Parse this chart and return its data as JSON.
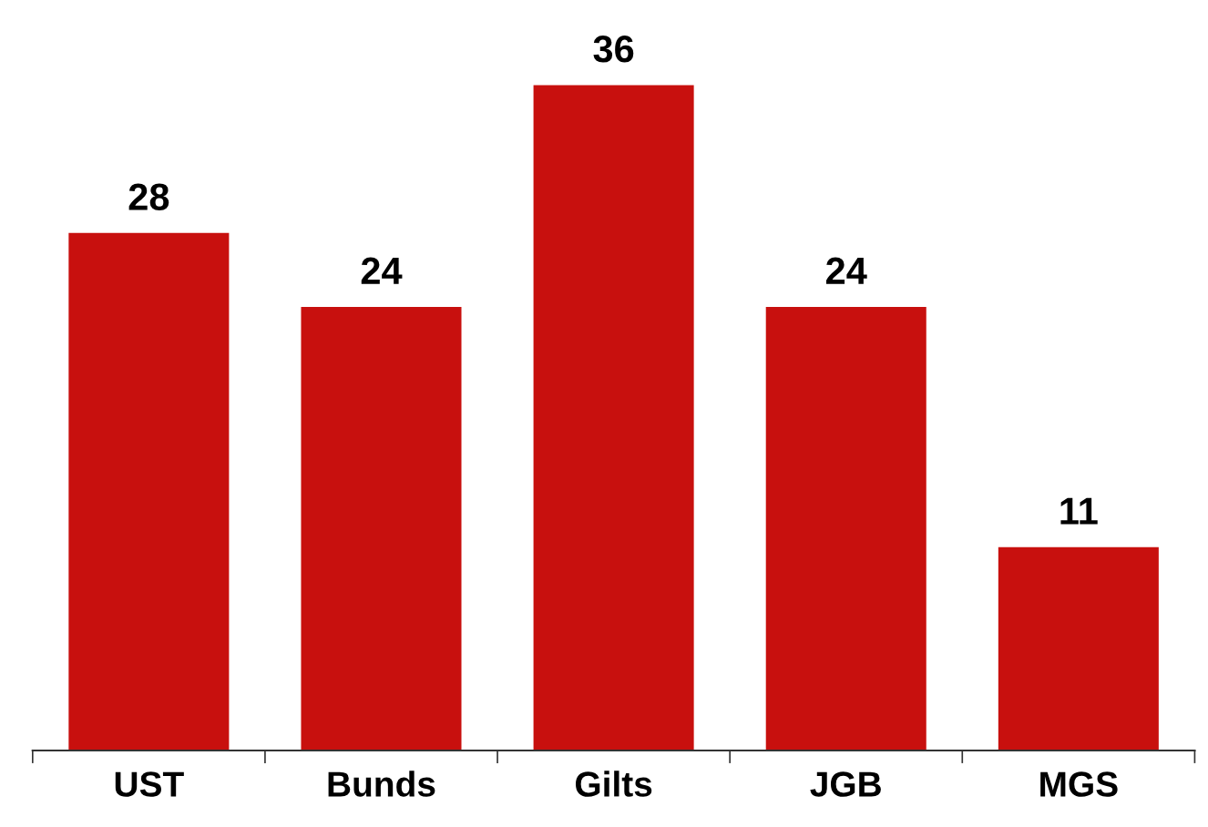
{
  "chart_data": {
    "type": "bar",
    "categories": [
      "UST",
      "Bunds",
      "Gilts",
      "JGB",
      "MGS"
    ],
    "values": [
      28,
      24,
      36,
      24,
      11
    ],
    "color": "#c8100e",
    "data_labels": true,
    "grid": false,
    "legend": false
  }
}
